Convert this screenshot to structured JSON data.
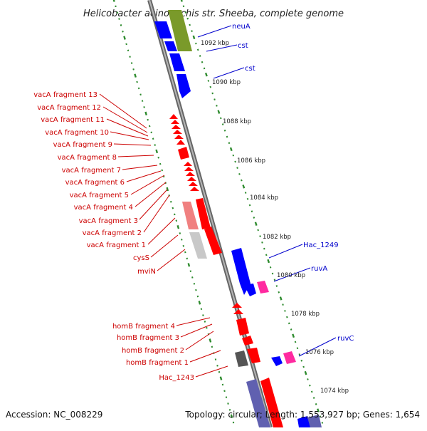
{
  "title": "Helicobacter acinonychis str. Sheeba, complete genome",
  "footer": {
    "accession": "Accession: NC_008229",
    "topology": "Topology: circular; Length: 1,553,927 bp; Genes: 1,654"
  },
  "colors": {
    "backbone": "#8c8c8c",
    "tick": "#2e8b2e",
    "red_feature": "#ff0000",
    "blue_feature": "#0000ff",
    "pink_feature": "#ff2aa0",
    "olive_feature": "#7a9a2a",
    "gray_feature": "#aaaaaa",
    "label_red": "#cc0000",
    "label_blue": "#0000cc"
  },
  "kbp_ticks": [
    "1092 kbp",
    "1090 kbp",
    "1088 kbp",
    "1086 kbp",
    "1084 kbp",
    "1082 kbp",
    "1080 kbp",
    "1078 kbp",
    "1076 kbp",
    "1074 kbp"
  ],
  "labels_left": [
    "vacA fragment 13",
    "vacA fragment 12",
    "vacA fragment 11",
    "vacA fragment 10",
    "vacA fragment 9",
    "vacA fragment 8",
    "vacA fragment 7",
    "vacA fragment 6",
    "vacA fragment 5",
    "vacA fragment 4",
    "vacA fragment 3",
    "vacA fragment 2",
    "vacA fragment 1",
    "cysS",
    "mviN",
    "homB fragment 4",
    "homB fragment 3",
    "homB fragment 2",
    "homB fragment 1",
    "Hac_1243"
  ],
  "labels_right": [
    "neuA",
    "cst",
    "cst",
    "Hac_1249",
    "ruvA",
    "ruvC"
  ]
}
